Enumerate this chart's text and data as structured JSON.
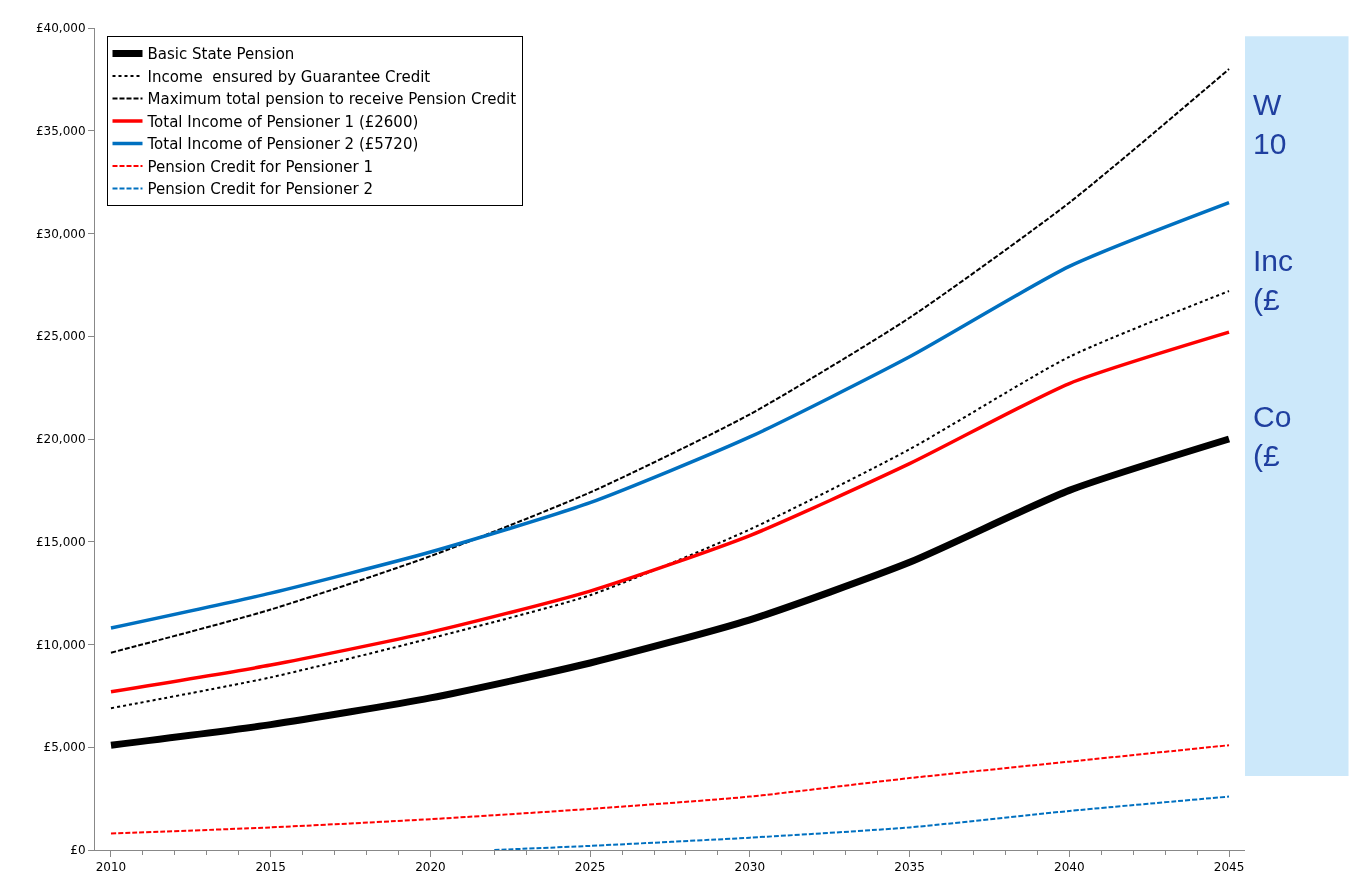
{
  "chart_data": {
    "type": "line",
    "x": [
      2010,
      2015,
      2020,
      2025,
      2030,
      2035,
      2040,
      2045
    ],
    "series": [
      {
        "name": "Basic State Pension",
        "color": "#000000",
        "line_style": "solid",
        "values": [
          5100,
          6100,
          7400,
          9100,
          11200,
          14000,
          17500,
          20000
        ]
      },
      {
        "name": "Income  ensured by Guarantee Credit",
        "color": "#000000",
        "line_style": "dotted",
        "values": [
          6900,
          8400,
          10300,
          12400,
          15600,
          19500,
          24000,
          27200
        ]
      },
      {
        "name": "Maximum total pension to receive Pension Credit",
        "color": "#000000",
        "line_style": "dashed",
        "values": [
          9600,
          11700,
          14300,
          17400,
          21200,
          25900,
          31500,
          38000
        ]
      },
      {
        "name": "Total Income of Pensioner 1 (£2600)",
        "color": "#ff0000",
        "line_style": "solid",
        "values": [
          7700,
          9000,
          10600,
          12600,
          15300,
          18800,
          22700,
          25200
        ]
      },
      {
        "name": "Total Income of Pensioner 2 (£5720)",
        "color": "#0070c0",
        "line_style": "solid",
        "values": [
          10800,
          12500,
          14500,
          16900,
          20100,
          24000,
          28400,
          31500
        ]
      },
      {
        "name": "Pension Credit for Pensioner 1",
        "color": "#ff0000",
        "line_style": "dashed",
        "values": [
          800,
          1100,
          1500,
          2000,
          2600,
          3500,
          4300,
          5100
        ]
      },
      {
        "name": "Pension Credit for Pensioner 2",
        "color": "#0070c0",
        "line_style": "dashed",
        "x": [
          2022,
          2025,
          2030,
          2035,
          2040,
          2045
        ],
        "values": [
          0,
          200,
          600,
          1100,
          1900,
          2600
        ]
      }
    ],
    "xlim": [
      2009.5,
      2045.5
    ],
    "xticks": [
      2010,
      2015,
      2020,
      2025,
      2030,
      2035,
      2040,
      2045
    ],
    "ylim": [
      0,
      40000
    ],
    "yticks": [
      {
        "value": 0,
        "label": "£0"
      },
      {
        "value": 5000,
        "label": "£5,000"
      },
      {
        "value": 10000,
        "label": "£10,000"
      },
      {
        "value": 15000,
        "label": "£15,000"
      },
      {
        "value": 20000,
        "label": "£20,000"
      },
      {
        "value": 25000,
        "label": "£25,000"
      },
      {
        "value": 30000,
        "label": "£30,000"
      },
      {
        "value": 35000,
        "label": "£35,000"
      },
      {
        "value": 40000,
        "label": "£40,000"
      }
    ],
    "grid": false,
    "legend": "top left",
    "marker": "none",
    "annotations": [
      "W\n10",
      "Inc\n(£",
      "Co\n(£"
    ]
  }
}
